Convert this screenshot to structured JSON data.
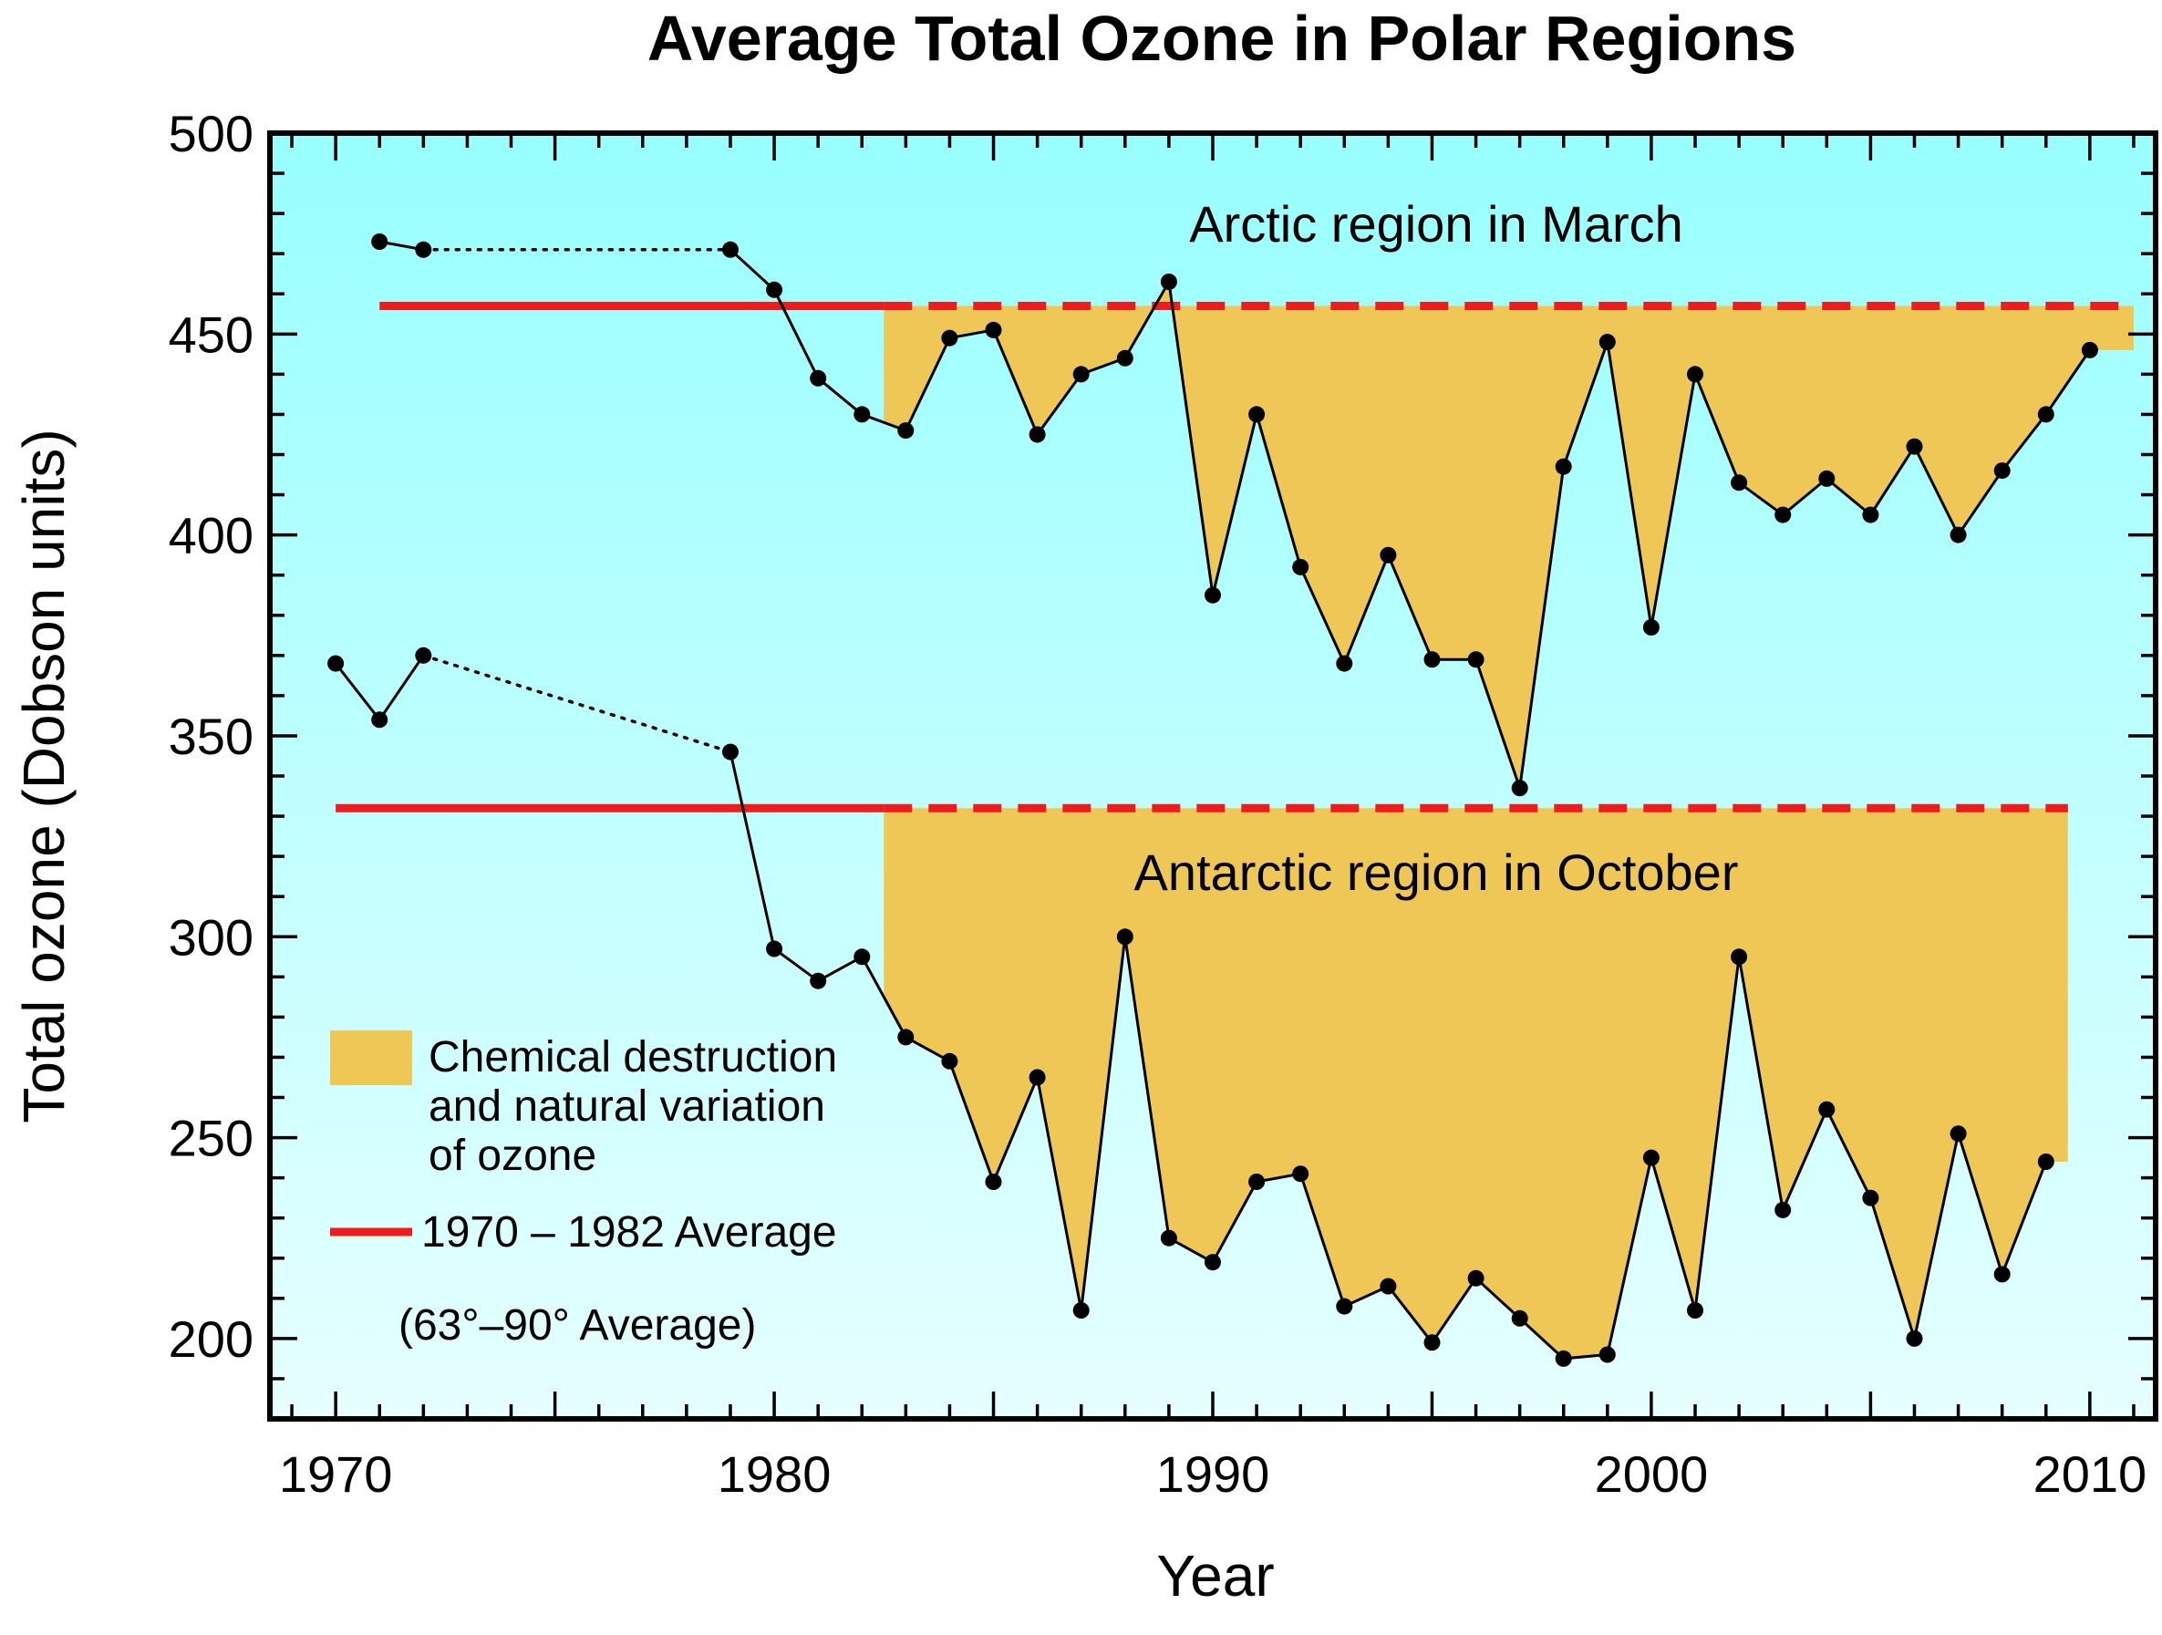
{
  "chart_data": {
    "type": "line",
    "title": "Average Total Ozone in Polar Regions",
    "xlabel": "Year",
    "ylabel": "Total ozone (Dobson units)",
    "xlim": [
      1968.5,
      2011.5
    ],
    "ylim": [
      180,
      500
    ],
    "x_ticks": [
      1970,
      1980,
      1990,
      2000,
      2010
    ],
    "y_ticks": [
      200,
      250,
      300,
      350,
      400,
      450,
      500
    ],
    "x_minor_step": 1,
    "y_minor_step": 10,
    "background_gradient": [
      "#98ffff",
      "#e6ffff"
    ],
    "colors": {
      "average_line": "#ee1c1c",
      "fill": "#eec756",
      "series": "#000000"
    },
    "series": [
      {
        "name": "Arctic region in March",
        "points": [
          [
            1971,
            473
          ],
          [
            1972,
            471
          ],
          [
            1979,
            471
          ],
          [
            1980,
            461
          ],
          [
            1981,
            439
          ],
          [
            1982,
            430
          ],
          [
            1983,
            426
          ],
          [
            1984,
            449
          ],
          [
            1985,
            451
          ],
          [
            1986,
            425
          ],
          [
            1987,
            440
          ],
          [
            1988,
            444
          ],
          [
            1989,
            463
          ],
          [
            1990,
            385
          ],
          [
            1991,
            430
          ],
          [
            1992,
            392
          ],
          [
            1993,
            368
          ],
          [
            1994,
            395
          ],
          [
            1995,
            369
          ],
          [
            1996,
            369
          ],
          [
            1997,
            337
          ],
          [
            1998,
            417
          ],
          [
            1999,
            448
          ],
          [
            2000,
            377
          ],
          [
            2001,
            440
          ],
          [
            2002,
            413
          ],
          [
            2003,
            405
          ],
          [
            2004,
            414
          ],
          [
            2005,
            405
          ],
          [
            2006,
            422
          ],
          [
            2007,
            400
          ],
          [
            2008,
            416
          ],
          [
            2009,
            430
          ],
          [
            2010,
            446
          ]
        ],
        "gap_after_year": 1972,
        "average": {
          "label": "1970 – 1982 Average",
          "value": 457,
          "solid_range": [
            1971,
            1982.5
          ],
          "dashed_range": [
            1982.5,
            2011
          ]
        },
        "fill_range": [
          1982.5,
          2011
        ]
      },
      {
        "name": "Antarctic region in October",
        "points": [
          [
            1970,
            368
          ],
          [
            1971,
            354
          ],
          [
            1972,
            370
          ],
          [
            1979,
            346
          ],
          [
            1980,
            297
          ],
          [
            1981,
            289
          ],
          [
            1982,
            295
          ],
          [
            1983,
            275
          ],
          [
            1984,
            269
          ],
          [
            1985,
            239
          ],
          [
            1986,
            265
          ],
          [
            1987,
            207
          ],
          [
            1988,
            300
          ],
          [
            1989,
            225
          ],
          [
            1990,
            219
          ],
          [
            1991,
            239
          ],
          [
            1992,
            241
          ],
          [
            1993,
            208
          ],
          [
            1994,
            213
          ],
          [
            1995,
            199
          ],
          [
            1996,
            215
          ],
          [
            1997,
            205
          ],
          [
            1998,
            195
          ],
          [
            1999,
            196
          ],
          [
            2000,
            245
          ],
          [
            2001,
            207
          ],
          [
            2002,
            295
          ],
          [
            2003,
            232
          ],
          [
            2004,
            257
          ],
          [
            2005,
            235
          ],
          [
            2006,
            200
          ],
          [
            2007,
            251
          ],
          [
            2008,
            216
          ],
          [
            2009,
            244
          ]
        ],
        "gap_after_year": 1972,
        "average": {
          "label": "1970 – 1982 Average",
          "value": 332,
          "solid_range": [
            1970,
            1982.5
          ],
          "dashed_range": [
            1982.5,
            2009.5
          ]
        },
        "fill_range": [
          1982.5,
          2009.5
        ]
      }
    ],
    "legend": {
      "fill_label": [
        "Chemical destruction",
        "and natural variation",
        "of ozone"
      ],
      "line_label": "1970 – 1982 Average",
      "note": "(63°–90° Average)"
    }
  }
}
